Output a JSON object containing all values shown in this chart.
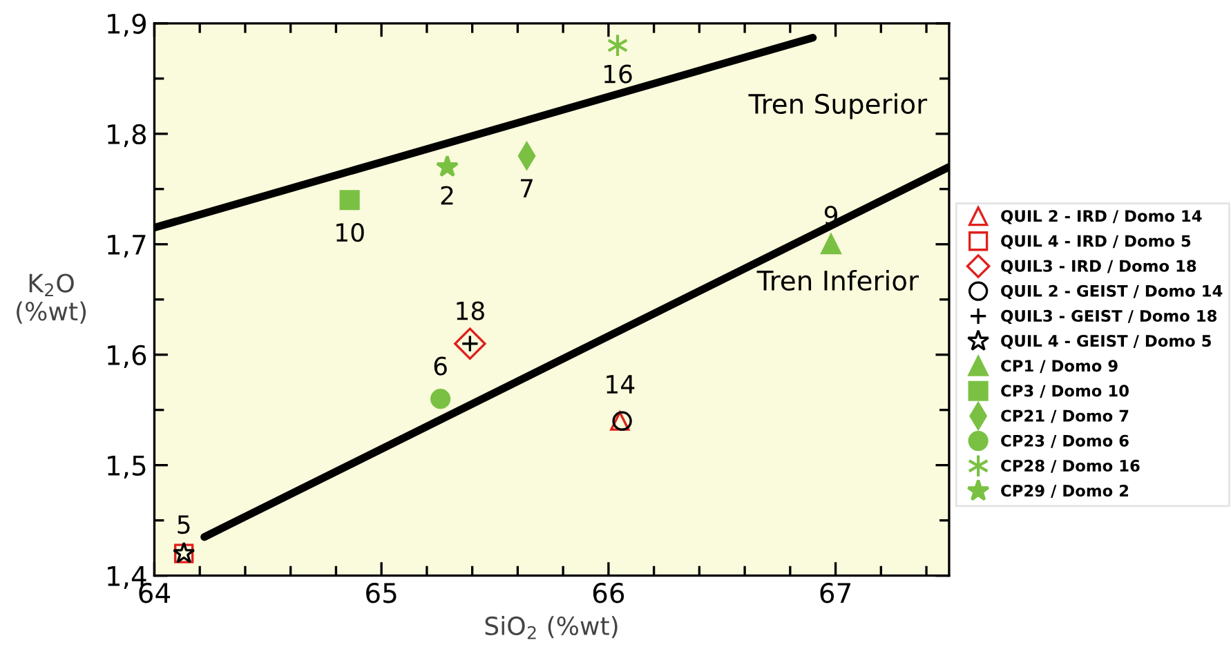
{
  "chart_data": {
    "type": "scatter",
    "xlabel": "SiO$_{2}$ (%wt)",
    "ylabel": "K$_{2}$O\n(%wt)",
    "xlim": [
      64,
      67.5
    ],
    "xticks": [
      64,
      65,
      66,
      67
    ],
    "ylim": [
      1.4,
      1.9
    ],
    "yticks": [
      {
        "value": 1.4,
        "label": "1,4"
      },
      {
        "value": 1.5,
        "label": "1,5"
      },
      {
        "value": 1.6,
        "label": "1,6"
      },
      {
        "value": 1.7,
        "label": "1,7"
      },
      {
        "value": 1.8,
        "label": "1,8"
      },
      {
        "value": 1.9,
        "label": "1,9"
      }
    ],
    "grid": false,
    "legend": "right",
    "series": [
      {
        "name": "QUIL 2 - IRD / Domo 14",
        "color": "#e0201c",
        "marker": "triangle",
        "x": [
          66.05
        ],
        "values": [
          1.54
        ]
      },
      {
        "name": "QUIL 4 - IRD / Domo 5",
        "color": "#e0201c",
        "marker": "square",
        "x": [
          64.13
        ],
        "values": [
          1.42
        ]
      },
      {
        "name": "QUIL3 - IRD / Domo 18",
        "color": "#e0201c",
        "marker": "diamond",
        "x": [
          65.39
        ],
        "values": [
          1.61
        ]
      },
      {
        "name": "QUIL 2 - GEIST / Domo 14",
        "color": "#000000",
        "marker": "circle",
        "x": [
          66.06
        ],
        "values": [
          1.54
        ]
      },
      {
        "name": "QUIL3 - GEIST / Domo 18",
        "color": "#000000",
        "marker": "cross",
        "x": [
          65.39
        ],
        "values": [
          1.61
        ]
      },
      {
        "name": "QUIL 4 - GEIST / Domo 5",
        "color": "#000000",
        "marker": "star",
        "x": [
          64.13
        ],
        "values": [
          1.42
        ]
      },
      {
        "name": "CP1 / Domo 9",
        "color": "#7ac143",
        "marker": "triangle",
        "x": [
          66.98
        ],
        "values": [
          1.7
        ]
      },
      {
        "name": "CP3 / Domo 10",
        "color": "#7ac143",
        "marker": "square",
        "x": [
          64.86
        ],
        "values": [
          1.74
        ]
      },
      {
        "name": "CP21 / Domo 7",
        "color": "#7ac143",
        "marker": "diamond",
        "x": [
          65.64
        ],
        "values": [
          1.78
        ]
      },
      {
        "name": "CP23 / Domo 6",
        "color": "#7ac143",
        "marker": "circle",
        "x": [
          65.26
        ],
        "values": [
          1.56
        ]
      },
      {
        "name": "CP28 / Domo 16",
        "color": "#7ac143",
        "marker": "cross",
        "x": [
          66.04
        ],
        "values": [
          1.88
        ]
      },
      {
        "name": "CP29 / Domo 2",
        "color": "#7ac143",
        "marker": "star",
        "x": [
          65.29
        ],
        "values": [
          1.77
        ]
      },
      {
        "type": "line",
        "color": "#000000",
        "x": [
          64,
          66.9
        ],
        "values": [
          1.715,
          1.887
        ]
      },
      {
        "type": "line",
        "color": "#000000",
        "x": [
          64.22,
          67.5
        ],
        "values": [
          1.435,
          1.77
        ]
      }
    ],
    "annotations": [
      {
        "text": "16",
        "x": 66.04,
        "y": 1.88
      },
      {
        "text": "2",
        "x": 65.29,
        "y": 1.77
      },
      {
        "text": "7",
        "x": 65.64,
        "y": 1.78
      },
      {
        "text": "10",
        "x": 64.86,
        "y": 1.74
      },
      {
        "text": "9",
        "x": 66.98,
        "y": 1.7
      },
      {
        "text": "18",
        "x": 65.39,
        "y": 1.61
      },
      {
        "text": "6",
        "x": 65.26,
        "y": 1.56
      },
      {
        "text": "14",
        "x": 66.05,
        "y": 1.54
      },
      {
        "text": "5",
        "x": 64.13,
        "y": 1.42
      },
      "Tren Superior",
      "Tren Inferior"
    ]
  }
}
